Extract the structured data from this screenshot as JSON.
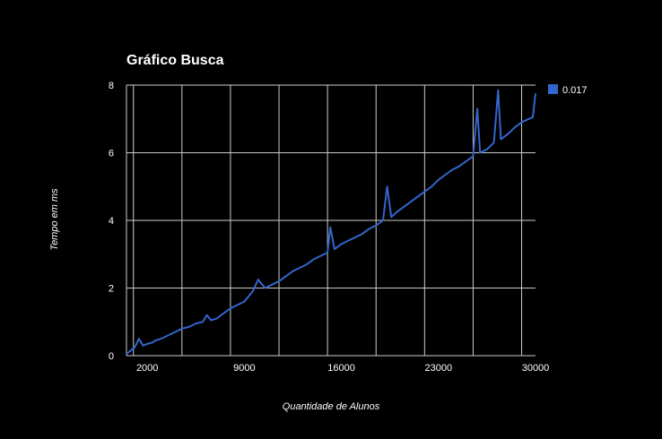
{
  "chart_data": {
    "type": "line",
    "title": "Gráfico Busca",
    "xlabel": "Quantidade de Alunos",
    "ylabel": "Tempo em ms",
    "xlim": [
      500,
      30000
    ],
    "ylim": [
      0,
      8
    ],
    "x_ticks": [
      "2000",
      "9000",
      "16000",
      "23000",
      "30000"
    ],
    "y_ticks": [
      "0",
      "2",
      "4",
      "6",
      "8"
    ],
    "grid": true,
    "legend_position": "right",
    "colors": {
      "background": "#000000",
      "line": "#3366cc",
      "grid": "#cccccc",
      "text": "#ffffff"
    },
    "series": [
      {
        "name": "0.017",
        "x": [
          500,
          800,
          1100,
          1400,
          1700,
          2000,
          2300,
          2600,
          3000,
          3500,
          4000,
          4500,
          5000,
          5500,
          6000,
          6300,
          6600,
          7000,
          7500,
          8000,
          8500,
          9000,
          9300,
          9600,
          10000,
          10500,
          11000,
          11500,
          12000,
          12500,
          13000,
          13500,
          14000,
          14500,
          15000,
          15200,
          15500,
          16000,
          16500,
          17000,
          17500,
          18000,
          18500,
          19000,
          19300,
          19600,
          20000,
          20500,
          21000,
          21500,
          22000,
          22500,
          23000,
          23500,
          24000,
          24500,
          25000,
          25500,
          25800,
          26000,
          26500,
          27000,
          27300,
          27500,
          28000,
          28500,
          29000,
          29500,
          29800,
          30000
        ],
        "values": [
          0.05,
          0.15,
          0.25,
          0.5,
          0.3,
          0.35,
          0.38,
          0.45,
          0.5,
          0.6,
          0.7,
          0.8,
          0.85,
          0.95,
          1.0,
          1.2,
          1.05,
          1.1,
          1.25,
          1.4,
          1.5,
          1.6,
          1.75,
          1.9,
          2.25,
          2.0,
          2.1,
          2.2,
          2.35,
          2.5,
          2.6,
          2.7,
          2.85,
          2.95,
          3.05,
          3.8,
          3.15,
          3.3,
          3.4,
          3.5,
          3.6,
          3.75,
          3.85,
          4.0,
          5.0,
          4.1,
          4.25,
          4.4,
          4.55,
          4.7,
          4.85,
          5.0,
          5.2,
          5.35,
          5.5,
          5.6,
          5.75,
          5.9,
          7.3,
          6.0,
          6.1,
          6.3,
          7.85,
          6.4,
          6.55,
          6.75,
          6.9,
          7.0,
          7.05,
          7.75
        ]
      }
    ]
  }
}
